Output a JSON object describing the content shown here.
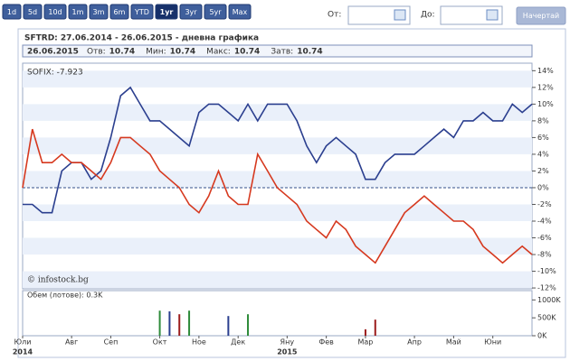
{
  "toolbar": {
    "buttons": [
      "1d",
      "5d",
      "10d",
      "1m",
      "3m",
      "6m",
      "YTD",
      "1yr",
      "3yr",
      "5yr",
      "Max"
    ],
    "selected": 7
  },
  "form": {
    "from_label": "От:",
    "to_label": "До:",
    "submit": "Начертай"
  },
  "chart_data": [
    {
      "type": "line",
      "title": "SFTRD: 27.06.2014 - 26.06.2015 - дневна графика",
      "info": {
        "date": "26.06.2015",
        "stats": [
          {
            "label": "Отв:",
            "value": 10.74
          },
          {
            "label": "Мин:",
            "value": 10.74
          },
          {
            "label": "Макс:",
            "value": 10.74
          },
          {
            "label": "Затв:",
            "value": 10.74
          }
        ]
      },
      "watermark": "© infostock.bg",
      "categories": [
        "Юли",
        null,
        null,
        null,
        null,
        "Авг",
        null,
        null,
        null,
        "Сеп",
        null,
        null,
        null,
        null,
        "Окт",
        null,
        null,
        null,
        "Ное",
        null,
        null,
        null,
        "Дек",
        null,
        null,
        null,
        null,
        "Яну",
        null,
        null,
        null,
        "Фев",
        null,
        null,
        null,
        "Мар",
        null,
        null,
        null,
        null,
        "Апр",
        null,
        null,
        null,
        "Май",
        null,
        null,
        null,
        "Юни",
        null,
        null,
        null,
        null
      ],
      "years": [
        "2014",
        null,
        null,
        null,
        null,
        null,
        null,
        null,
        null,
        null,
        null,
        null,
        null,
        null,
        null,
        null,
        null,
        null,
        null,
        null,
        null,
        null,
        null,
        null,
        null,
        null,
        null,
        "2015",
        null,
        null,
        null,
        null,
        null,
        null,
        null,
        null,
        null,
        null,
        null,
        null,
        null,
        null,
        null,
        null,
        null,
        null,
        null,
        null,
        null,
        null,
        null,
        null,
        null
      ],
      "series": [
        {
          "color": "#2b3f8f",
          "values": [
            -2,
            -2,
            -3,
            -3,
            2,
            3,
            3,
            1,
            2,
            6,
            11,
            12,
            10,
            8,
            8,
            7,
            6,
            5,
            9,
            10,
            10,
            9,
            8,
            10,
            8,
            10,
            10,
            10,
            8,
            5,
            3,
            5,
            6,
            5,
            4,
            1,
            1,
            3,
            4,
            4,
            4,
            5,
            6,
            7,
            6,
            8,
            8,
            9,
            8,
            8,
            10,
            9,
            10
          ]
        },
        {
          "name": "SOFIX: -7.923",
          "color": "#d6391f",
          "values": [
            0,
            7,
            3,
            3,
            4,
            3,
            3,
            2,
            1,
            3,
            6,
            6,
            5,
            4,
            2,
            1,
            0,
            -2,
            -3,
            -1,
            2,
            -1,
            -2,
            -2,
            4,
            2,
            0,
            -1,
            -2,
            -4,
            -5,
            -6,
            -4,
            -5,
            -7,
            -8,
            -9,
            -7,
            -5,
            -3,
            -2,
            -1,
            -2,
            -3,
            -4,
            -4,
            -5,
            -7,
            -8,
            -9,
            -8,
            -7,
            -8
          ]
        }
      ],
      "ylim": [
        -12.1,
        14.9
      ],
      "yticks": [
        {
          "value": 14,
          "label": "14%"
        },
        {
          "value": 12,
          "label": "12%"
        },
        {
          "value": 10,
          "label": "10%"
        },
        {
          "value": 8,
          "label": "8%"
        },
        {
          "value": 6,
          "label": "6%"
        },
        {
          "value": 4,
          "label": "4%"
        },
        {
          "value": 2,
          "label": "2%"
        },
        {
          "value": 0,
          "label": "0%"
        },
        {
          "value": -2,
          "label": "-2%"
        },
        {
          "value": -4,
          "label": "-4%"
        },
        {
          "value": -6,
          "label": "-6%"
        },
        {
          "value": -8,
          "label": "-8%"
        },
        {
          "value": -10,
          "label": "-10%"
        },
        {
          "value": -12,
          "label": "-12%"
        }
      ],
      "grid": true
    },
    {
      "type": "bar",
      "title": "Обем (лотове): 0.3K",
      "values": [
        0,
        0,
        0,
        0,
        0,
        0,
        0,
        0,
        0,
        0,
        0,
        0,
        0,
        0,
        700000,
        680000,
        600000,
        700000,
        0,
        0,
        0,
        550000,
        0,
        600000,
        0,
        0,
        0,
        0,
        0,
        0,
        0,
        0,
        0,
        0,
        0,
        180000,
        450000,
        0,
        0,
        0,
        0,
        0,
        0,
        0,
        0,
        0,
        0,
        0,
        0,
        0,
        0,
        0,
        0
      ],
      "colors": [
        null,
        null,
        null,
        null,
        null,
        null,
        null,
        null,
        null,
        null,
        null,
        null,
        null,
        null,
        "#2e8b3a",
        "#2b3f8f",
        "#9b1c1c",
        "#2e8b3a",
        null,
        null,
        null,
        "#2b3f8f",
        null,
        "#2e8b3a",
        null,
        null,
        null,
        null,
        null,
        null,
        null,
        null,
        null,
        null,
        null,
        "#9b1c1c",
        "#9b1c1c",
        null,
        null,
        null,
        null,
        null,
        null,
        null,
        null,
        null,
        null,
        null,
        null,
        null,
        null,
        null,
        null
      ],
      "ylim": [
        0,
        1260000
      ],
      "yticks": [
        {
          "value": 1000000,
          "label": "1000K"
        },
        {
          "value": 500000,
          "label": "500K"
        },
        {
          "value": 0,
          "label": "0K"
        }
      ]
    }
  ]
}
